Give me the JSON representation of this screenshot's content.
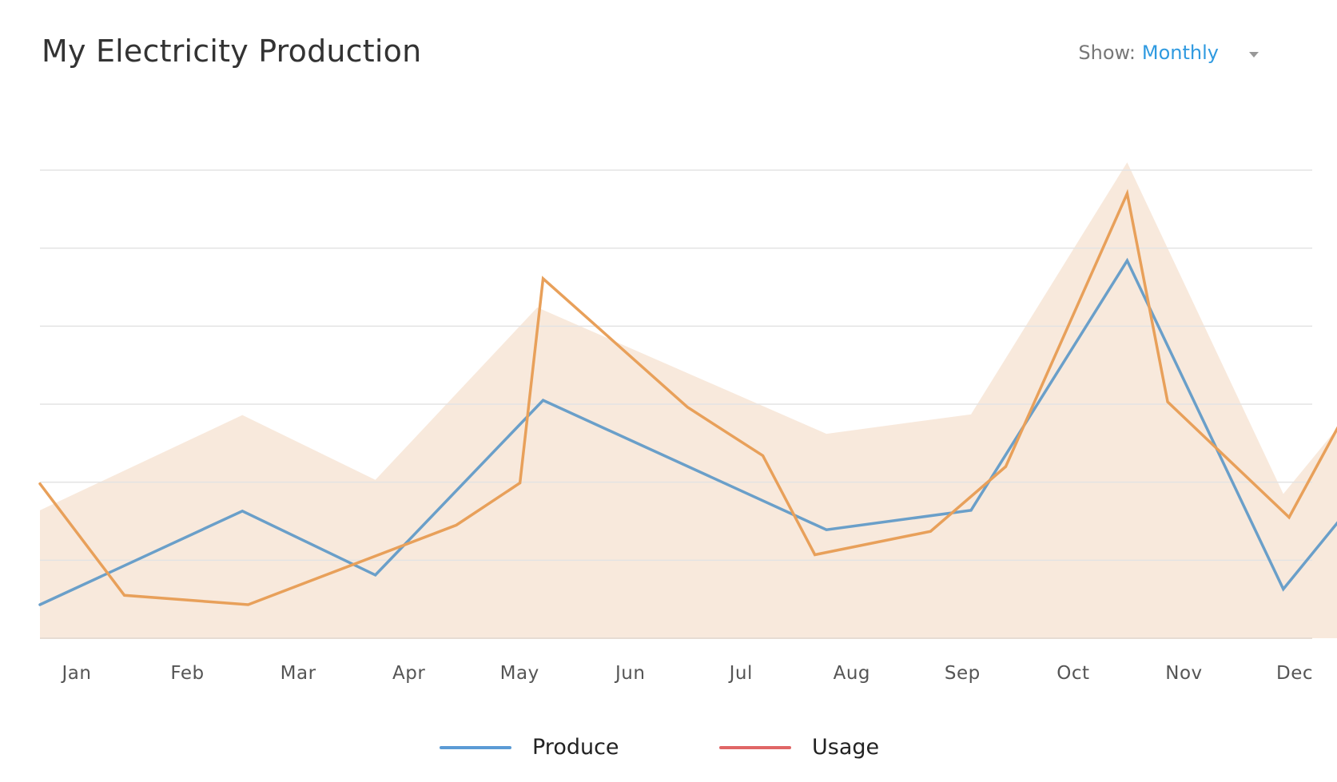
{
  "header": {
    "title": "My Electricity Production",
    "show_label": "Show:",
    "show_value": "Monthly"
  },
  "chart_data": {
    "type": "line",
    "categories": [
      "Jan",
      "Feb",
      "Mar",
      "Apr",
      "May",
      "Jun",
      "Jul",
      "Aug",
      "Sep",
      "Oct",
      "Nov",
      "Dec"
    ],
    "ylim": [
      0,
      6
    ],
    "grid": true,
    "gridlines": 6,
    "legend_placement": "bottom-center",
    "area": {
      "color": "#f8e9dc",
      "points": [
        {
          "x": 0.0,
          "y": 1.64
        },
        {
          "x": 1.75,
          "y": 2.86
        },
        {
          "x": 2.9,
          "y": 2.03
        },
        {
          "x": 4.3,
          "y": 4.24
        },
        {
          "x": 6.8,
          "y": 2.62
        },
        {
          "x": 8.05,
          "y": 2.87
        },
        {
          "x": 9.4,
          "y": 6.1
        },
        {
          "x": 10.75,
          "y": 1.85
        },
        {
          "x": 11.62,
          "y": 3.42
        }
      ]
    },
    "series": [
      {
        "name": "Produce",
        "color": "#6a9fc9",
        "points": [
          {
            "x": 0.0,
            "y": 0.43
          },
          {
            "x": 1.75,
            "y": 1.63
          },
          {
            "x": 2.9,
            "y": 0.81
          },
          {
            "x": 4.35,
            "y": 3.05
          },
          {
            "x": 6.8,
            "y": 1.39
          },
          {
            "x": 8.05,
            "y": 1.64
          },
          {
            "x": 9.4,
            "y": 4.84
          },
          {
            "x": 10.75,
            "y": 0.63
          },
          {
            "x": 11.62,
            "y": 2.21
          }
        ]
      },
      {
        "name": "Usage",
        "color": "#e8a05a",
        "legend_color": "#e06666",
        "points": [
          {
            "x": 0.0,
            "y": 1.98
          },
          {
            "x": 0.73,
            "y": 0.55
          },
          {
            "x": 1.8,
            "y": 0.43
          },
          {
            "x": 3.6,
            "y": 1.45
          },
          {
            "x": 4.15,
            "y": 1.99
          },
          {
            "x": 4.35,
            "y": 4.61
          },
          {
            "x": 5.6,
            "y": 2.96
          },
          {
            "x": 6.25,
            "y": 2.34
          },
          {
            "x": 6.7,
            "y": 1.07
          },
          {
            "x": 7.7,
            "y": 1.37
          },
          {
            "x": 8.35,
            "y": 2.2
          },
          {
            "x": 9.4,
            "y": 5.7
          },
          {
            "x": 9.75,
            "y": 3.03
          },
          {
            "x": 10.8,
            "y": 1.55
          },
          {
            "x": 11.62,
            "y": 3.79
          }
        ]
      }
    ]
  },
  "legend": {
    "items": [
      {
        "label": "Produce",
        "color": "#5b9bd5"
      },
      {
        "label": "Usage",
        "color": "#e06666"
      }
    ]
  }
}
